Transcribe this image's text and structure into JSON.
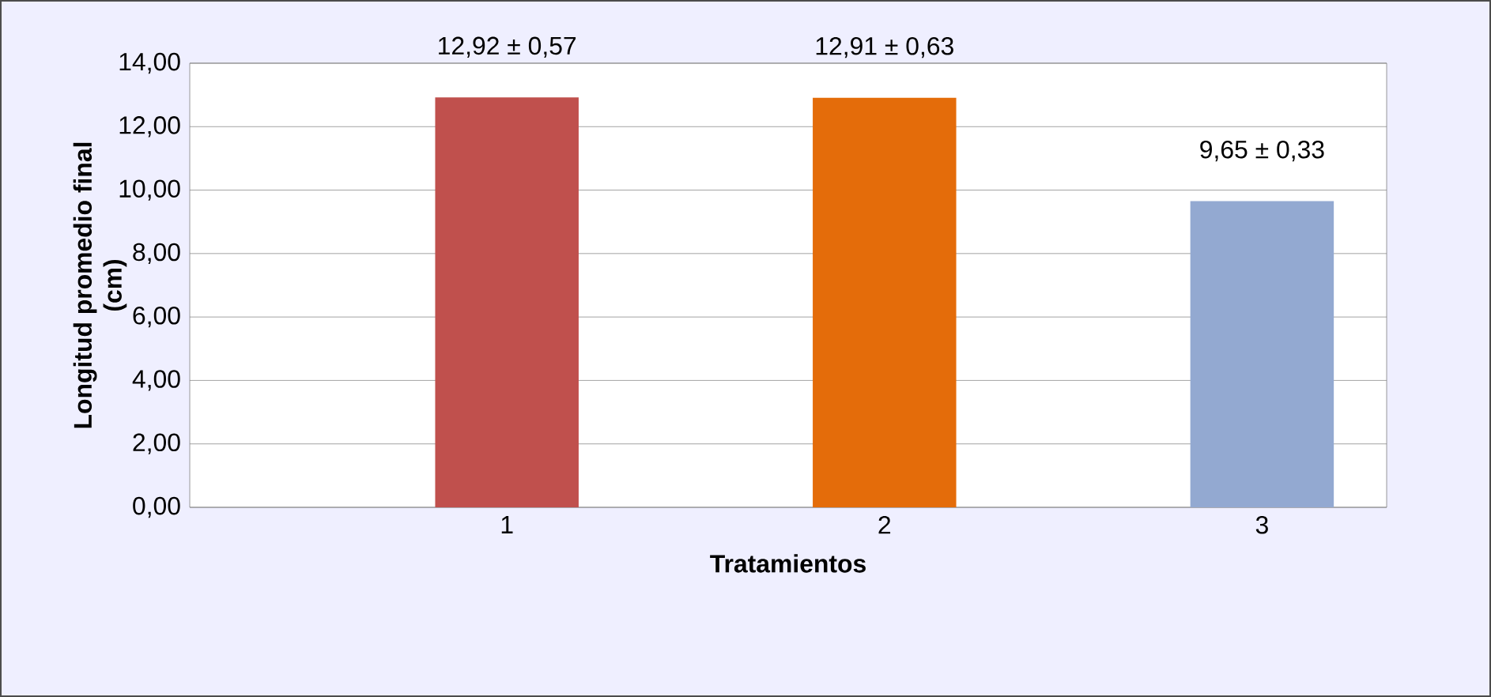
{
  "chart_data": {
    "type": "bar",
    "xlabel": "Tratamientos",
    "ylabel": "Longitud promedio final (cm)",
    "categories": [
      "1",
      "2",
      "3"
    ],
    "values": [
      12.92,
      12.91,
      9.65
    ],
    "colors": [
      "#c0504d",
      "#e46c0a",
      "#93a9d1"
    ],
    "value_labels": [
      "12,92 ± 0,57",
      "12,91 ± 0,63",
      "9,65 ± 0,33"
    ],
    "ylim": [
      0,
      14
    ],
    "yticks": [
      {
        "value": 0,
        "label": "0,00"
      },
      {
        "value": 2,
        "label": "2,00"
      },
      {
        "value": 4,
        "label": "4,00"
      },
      {
        "value": 6,
        "label": "6,00"
      },
      {
        "value": 8,
        "label": "8,00"
      },
      {
        "value": 10,
        "label": "10,00"
      },
      {
        "value": 12,
        "label": "12,00"
      },
      {
        "value": 14,
        "label": "14,00"
      }
    ],
    "grid": "y"
  }
}
